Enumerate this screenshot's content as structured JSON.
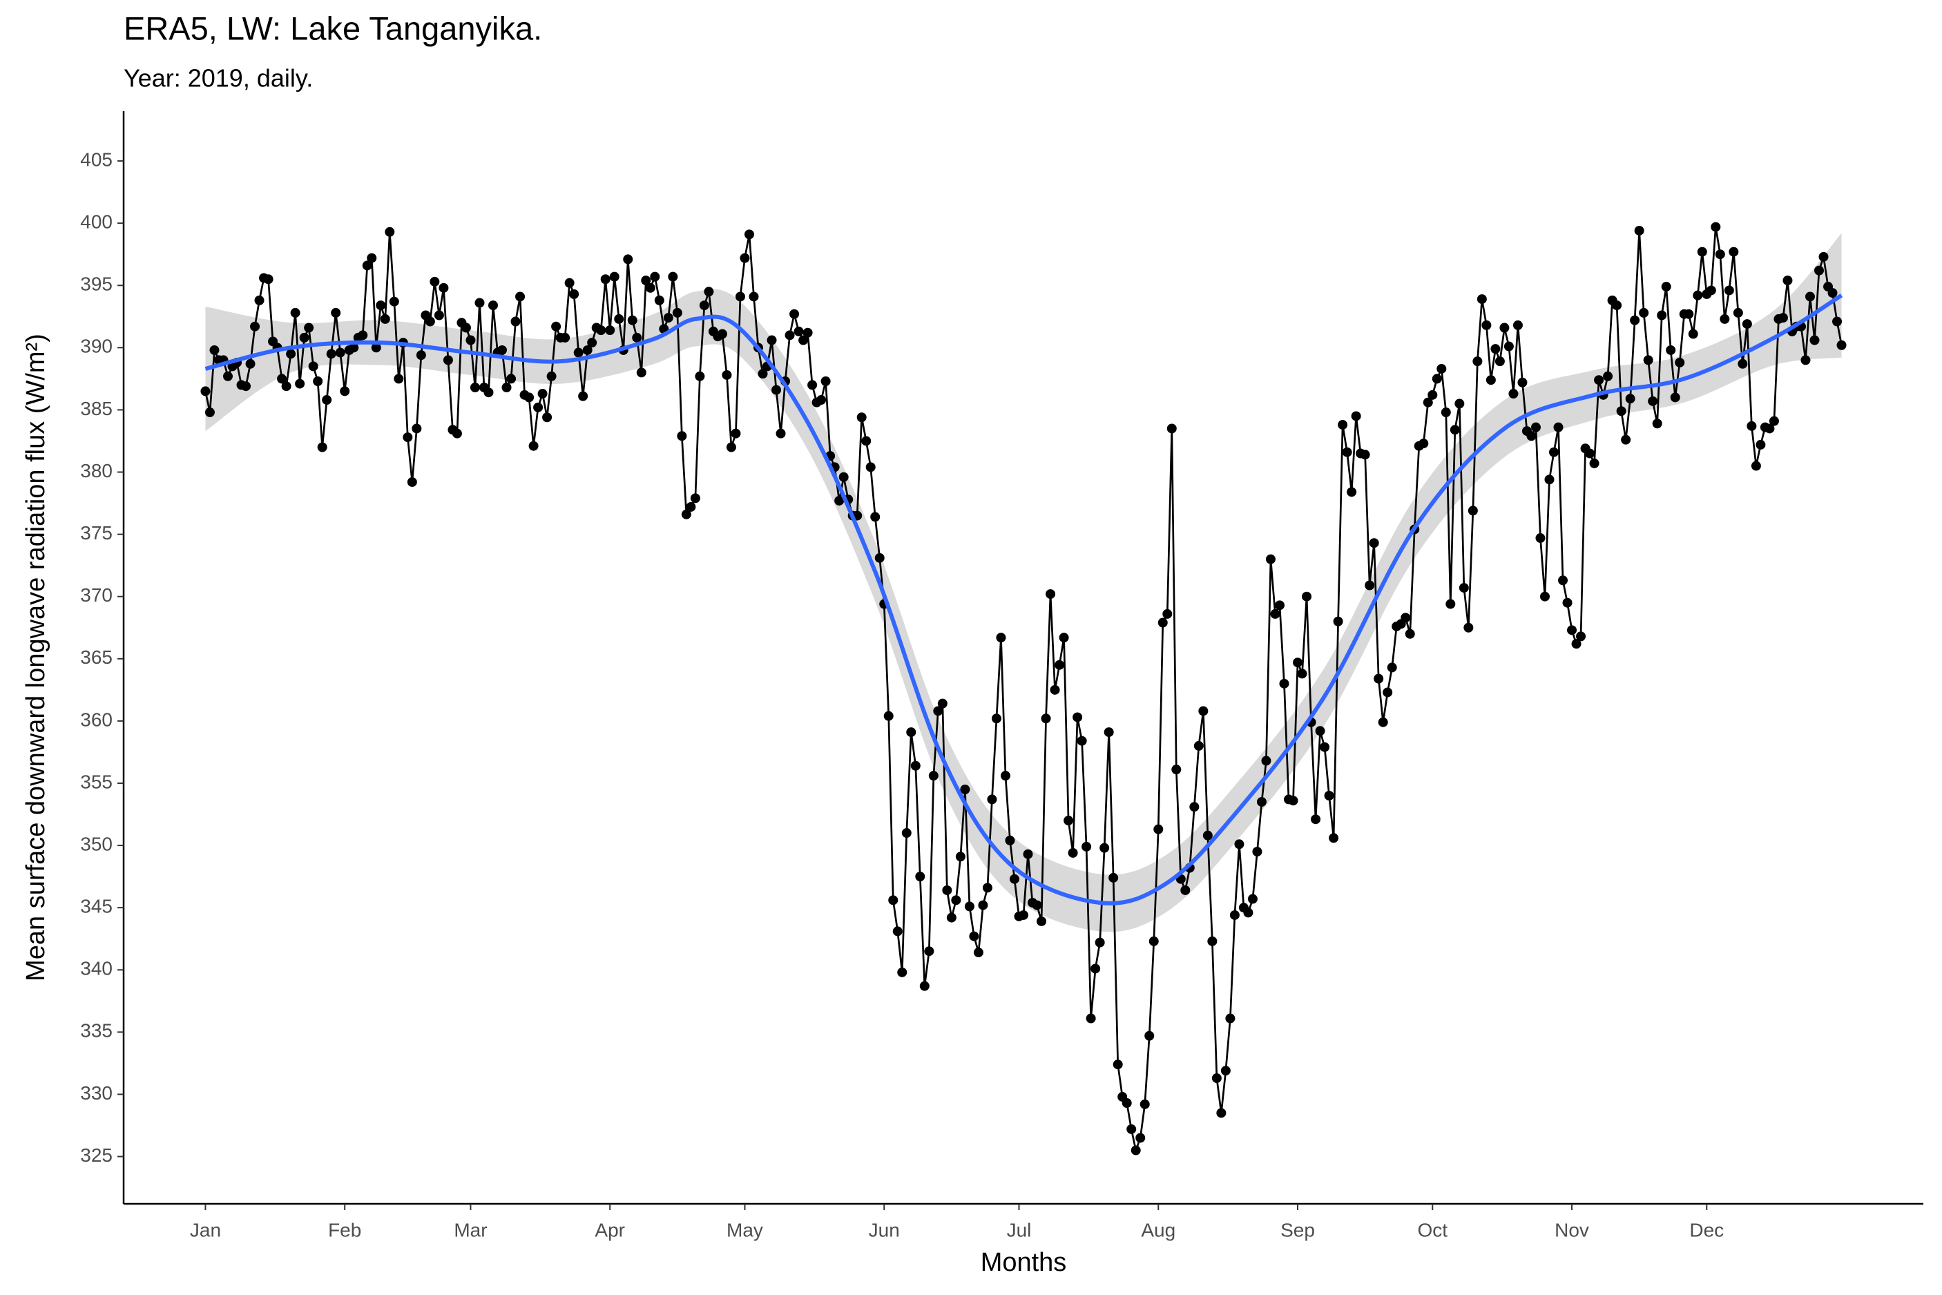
{
  "chart_data": {
    "type": "line",
    "title": "ERA5, LW: Lake Tanganyika.",
    "subtitle": "Year: 2019, daily.",
    "x_label": "Months",
    "y_label": "Mean surface downward longwave radiation flux (W/m²)",
    "markers": true,
    "grid": false,
    "xlim": [
      -17.2,
      383.2
    ],
    "ylim": [
      321.2,
      409
    ],
    "xticks": [
      {
        "value": 1,
        "label": "Jan"
      },
      {
        "value": 32,
        "label": "Feb"
      },
      {
        "value": 60,
        "label": "Mar"
      },
      {
        "value": 91,
        "label": "Apr"
      },
      {
        "value": 121,
        "label": "May"
      },
      {
        "value": 152,
        "label": "Jun"
      },
      {
        "value": 182,
        "label": "Jul"
      },
      {
        "value": 213,
        "label": "Aug"
      },
      {
        "value": 244,
        "label": "Sep"
      },
      {
        "value": 274,
        "label": "Oct"
      },
      {
        "value": 305,
        "label": "Nov"
      },
      {
        "value": 335,
        "label": "Dec"
      }
    ],
    "yticks": [
      325,
      330,
      335,
      340,
      345,
      350,
      355,
      360,
      365,
      370,
      375,
      380,
      385,
      390,
      395,
      400,
      405
    ],
    "x": [
      1,
      2,
      3,
      4,
      5,
      6,
      7,
      8,
      9,
      10,
      11,
      12,
      13,
      14,
      15,
      16,
      17,
      18,
      19,
      20,
      21,
      22,
      23,
      24,
      25,
      26,
      27,
      28,
      29,
      30,
      31,
      32,
      33,
      34,
      35,
      36,
      37,
      38,
      39,
      40,
      41,
      42,
      43,
      44,
      45,
      46,
      47,
      48,
      49,
      50,
      51,
      52,
      53,
      54,
      55,
      56,
      57,
      58,
      59,
      60,
      61,
      62,
      63,
      64,
      65,
      66,
      67,
      68,
      69,
      70,
      71,
      72,
      73,
      74,
      75,
      76,
      77,
      78,
      79,
      80,
      81,
      82,
      83,
      84,
      85,
      86,
      87,
      88,
      89,
      90,
      91,
      92,
      93,
      94,
      95,
      96,
      97,
      98,
      99,
      100,
      101,
      102,
      103,
      104,
      105,
      106,
      107,
      108,
      109,
      110,
      111,
      112,
      113,
      114,
      115,
      116,
      117,
      118,
      119,
      120,
      121,
      122,
      123,
      124,
      125,
      126,
      127,
      128,
      129,
      130,
      131,
      132,
      133,
      134,
      135,
      136,
      137,
      138,
      139,
      140,
      141,
      142,
      143,
      144,
      145,
      146,
      147,
      148,
      149,
      150,
      151,
      152,
      153,
      154,
      155,
      156,
      157,
      158,
      159,
      160,
      161,
      162,
      163,
      164,
      165,
      166,
      167,
      168,
      169,
      170,
      171,
      172,
      173,
      174,
      175,
      176,
      177,
      178,
      179,
      180,
      181,
      182,
      183,
      184,
      185,
      186,
      187,
      188,
      189,
      190,
      191,
      192,
      193,
      194,
      195,
      196,
      197,
      198,
      199,
      200,
      201,
      202,
      203,
      204,
      205,
      206,
      207,
      208,
      209,
      210,
      211,
      212,
      213,
      214,
      215,
      216,
      217,
      218,
      219,
      220,
      221,
      222,
      223,
      224,
      225,
      226,
      227,
      228,
      229,
      230,
      231,
      232,
      233,
      234,
      235,
      236,
      237,
      238,
      239,
      240,
      241,
      242,
      243,
      244,
      245,
      246,
      247,
      248,
      249,
      250,
      251,
      252,
      253,
      254,
      255,
      256,
      257,
      258,
      259,
      260,
      261,
      262,
      263,
      264,
      265,
      266,
      267,
      268,
      269,
      270,
      271,
      272,
      273,
      274,
      275,
      276,
      277,
      278,
      279,
      280,
      281,
      282,
      283,
      284,
      285,
      286,
      287,
      288,
      289,
      290,
      291,
      292,
      293,
      294,
      295,
      296,
      297,
      298,
      299,
      300,
      301,
      302,
      303,
      304,
      305,
      306,
      307,
      308,
      309,
      310,
      311,
      312,
      313,
      314,
      315,
      316,
      317,
      318,
      319,
      320,
      321,
      322,
      323,
      324,
      325,
      326,
      327,
      328,
      329,
      330,
      331,
      332,
      333,
      334,
      335,
      336,
      337,
      338,
      339,
      340,
      341,
      342,
      343,
      344,
      345,
      346,
      347,
      348,
      349,
      350,
      351,
      352,
      353,
      354,
      355,
      356,
      357,
      358,
      359,
      360,
      361,
      362,
      363,
      364,
      365
    ],
    "series": [
      {
        "color": "#000000",
        "values": [
          386.5,
          384.8,
          389.8,
          389,
          389,
          387.7,
          388.5,
          388.8,
          387,
          386.9,
          388.7,
          391.7,
          393.8,
          395.6,
          395.5,
          390.5,
          390,
          387.5,
          386.9,
          389.5,
          392.8,
          387.1,
          390.8,
          391.6,
          388.5,
          387.3,
          382,
          385.8,
          389.5,
          392.8,
          389.6,
          386.5,
          389.8,
          390,
          390.8,
          391,
          396.6,
          397.2,
          390,
          393.4,
          392.3,
          399.3,
          393.7,
          387.5,
          390.4,
          382.8,
          379.2,
          383.5,
          389.4,
          392.6,
          392.1,
          395.3,
          392.6,
          394.8,
          389,
          383.4,
          383.1,
          392,
          391.6,
          390.6,
          386.8,
          393.6,
          386.8,
          386.4,
          393.4,
          389.6,
          389.8,
          386.8,
          387.5,
          392.1,
          394.1,
          386.2,
          386,
          382.1,
          385.2,
          386.3,
          384.4,
          387.7,
          391.7,
          390.8,
          390.8,
          395.2,
          394.3,
          389.6,
          386.1,
          389.8,
          390.4,
          391.6,
          391.4,
          395.5,
          391.4,
          395.7,
          392.3,
          389.8,
          397.1,
          392.2,
          390.8,
          388,
          395.4,
          394.8,
          395.7,
          393.8,
          391.5,
          392.4,
          395.7,
          392.8,
          382.9,
          376.6,
          377.2,
          377.9,
          387.7,
          393.4,
          394.5,
          391.3,
          390.9,
          391.1,
          387.8,
          382,
          383.1,
          394.1,
          397.2,
          399.1,
          394.1,
          390,
          387.9,
          388.5,
          390.6,
          386.6,
          383.1,
          387.3,
          391,
          392.7,
          391.3,
          390.6,
          391.2,
          387,
          385.6,
          385.8,
          387.3,
          381.3,
          380.4,
          377.7,
          379.6,
          377.8,
          376.5,
          376.5,
          384.4,
          382.5,
          380.4,
          376.4,
          373.1,
          369.4,
          360.4,
          345.6,
          343.1,
          339.8,
          351,
          359.1,
          356.4,
          347.5,
          338.7,
          341.5,
          355.6,
          360.8,
          361.4,
          346.4,
          344.2,
          345.6,
          349.1,
          354.5,
          345.1,
          342.7,
          341.4,
          345.2,
          346.6,
          353.7,
          360.2,
          366.7,
          355.6,
          350.4,
          347.3,
          344.3,
          344.4,
          349.3,
          345.4,
          345.2,
          343.9,
          360.2,
          370.2,
          362.5,
          364.5,
          366.7,
          352,
          349.4,
          360.3,
          358.4,
          349.9,
          336.1,
          340.1,
          342.2,
          349.8,
          359.1,
          347.4,
          332.4,
          329.8,
          329.3,
          327.2,
          325.5,
          326.5,
          329.2,
          334.7,
          342.3,
          351.3,
          367.9,
          368.6,
          383.5,
          356.1,
          347.3,
          346.4,
          348.2,
          353.1,
          358,
          360.8,
          350.8,
          342.3,
          331.3,
          328.5,
          331.9,
          336.1,
          344.4,
          350.1,
          345,
          344.6,
          345.7,
          349.5,
          353.5,
          356.8,
          373,
          368.6,
          369.3,
          363,
          353.7,
          353.6,
          364.7,
          363.8,
          370,
          359.9,
          352.1,
          359.2,
          357.9,
          354,
          350.6,
          368,
          383.8,
          381.6,
          378.4,
          384.5,
          381.5,
          381.4,
          370.9,
          374.3,
          363.4,
          359.9,
          362.3,
          364.3,
          367.6,
          367.8,
          368.3,
          367,
          375.4,
          382.1,
          382.3,
          385.6,
          386.2,
          387.5,
          388.3,
          384.8,
          369.4,
          383.4,
          385.5,
          370.7,
          367.5,
          376.9,
          388.9,
          393.9,
          391.8,
          387.4,
          389.9,
          388.9,
          391.6,
          390.1,
          386.3,
          391.8,
          387.2,
          383.3,
          382.9,
          383.6,
          374.7,
          370,
          379.4,
          381.6,
          383.6,
          371.3,
          369.5,
          367.3,
          366.2,
          366.8,
          381.9,
          381.5,
          380.7,
          387.4,
          386.2,
          387.7,
          393.8,
          393.4,
          384.9,
          382.6,
          385.9,
          392.2,
          399.4,
          392.8,
          389,
          385.7,
          383.9,
          392.6,
          394.9,
          389.8,
          386,
          388.8,
          392.7,
          392.7,
          391.1,
          394.2,
          397.7,
          394.3,
          394.6,
          399.7,
          397.5,
          392.3,
          394.6,
          397.7,
          392.8,
          388.7,
          391.9,
          383.7,
          380.5,
          382.2,
          383.6,
          383.5,
          384.1,
          392.3,
          392.4,
          395.4,
          391.3,
          391.7,
          391.7,
          389,
          394.1,
          390.6,
          396.2,
          397.3,
          394.9,
          394.4,
          392.1,
          390.2
        ]
      }
    ],
    "smooth": {
      "color": "#3366ff",
      "band_color": "#d9d9d9",
      "x": [
        1,
        20,
        40,
        60,
        80,
        100,
        110,
        120,
        135,
        150,
        165,
        180,
        200,
        215,
        230,
        250,
        270,
        290,
        310,
        330,
        350,
        365
      ],
      "values": [
        388.3,
        390,
        390.4,
        389.6,
        388.9,
        390.6,
        392.3,
        391.5,
        384,
        372,
        357,
        348.5,
        345.4,
        347,
        352.5,
        362,
        375.5,
        383.5,
        386.2,
        387.5,
        390.8,
        394.2
      ],
      "lower": [
        383.3,
        388,
        388.6,
        387.8,
        387.1,
        388.6,
        390.1,
        389.3,
        381.8,
        369.6,
        354.6,
        346.1,
        343.1,
        344.7,
        350.2,
        359.7,
        373.1,
        381.2,
        384.2,
        385.6,
        388.6,
        389.2
      ],
      "upper": [
        393.3,
        392,
        392.2,
        391.4,
        390.7,
        392.6,
        394.5,
        393.7,
        386.2,
        374.4,
        359.4,
        350.9,
        347.7,
        349.3,
        354.8,
        364.3,
        377.9,
        385.8,
        388.2,
        389.4,
        393,
        399.2
      ]
    }
  }
}
